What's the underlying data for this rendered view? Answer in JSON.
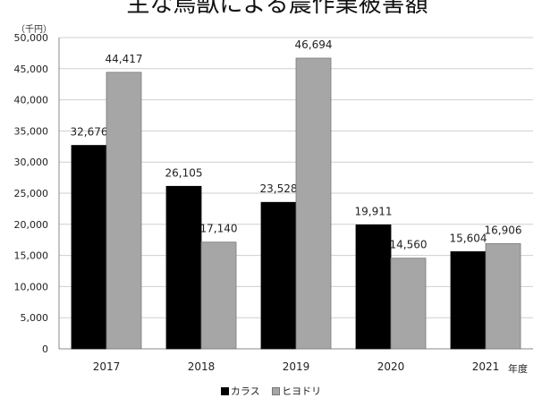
{
  "title": "主な鳥獣による農作業被害額",
  "y_unit": "（千円）",
  "x_unit": "年度",
  "legend": [
    {
      "name": "カラス",
      "color": "#000000"
    },
    {
      "name": "ヒヨドリ",
      "color": "#a6a6a6"
    }
  ],
  "chart_data": {
    "type": "bar",
    "title": "主な鳥獣による農作業被害額",
    "xlabel": "年度",
    "ylabel": "（千円）",
    "categories": [
      "2017",
      "2018",
      "2019",
      "2020",
      "2021"
    ],
    "series": [
      {
        "name": "カラス",
        "color": "#000000",
        "values": [
          32676,
          26105,
          23528,
          19911,
          15604
        ],
        "labels": [
          "32,676",
          "26,105",
          "23,528",
          "19,911",
          "15,604"
        ]
      },
      {
        "name": "ヒヨドリ",
        "color": "#a6a6a6",
        "values": [
          44417,
          17140,
          46694,
          14560,
          16906
        ],
        "labels": [
          "44,417",
          "17,140",
          "46,694",
          "14,560",
          "16,906"
        ]
      }
    ],
    "ylim": [
      0,
      50000
    ],
    "yticks": [
      "0",
      "5,000",
      "10,000",
      "15,000",
      "20,000",
      "25,000",
      "30,000",
      "35,000",
      "40,000",
      "45,000",
      "50,000"
    ],
    "grid": true,
    "legend_position": "bottom"
  }
}
